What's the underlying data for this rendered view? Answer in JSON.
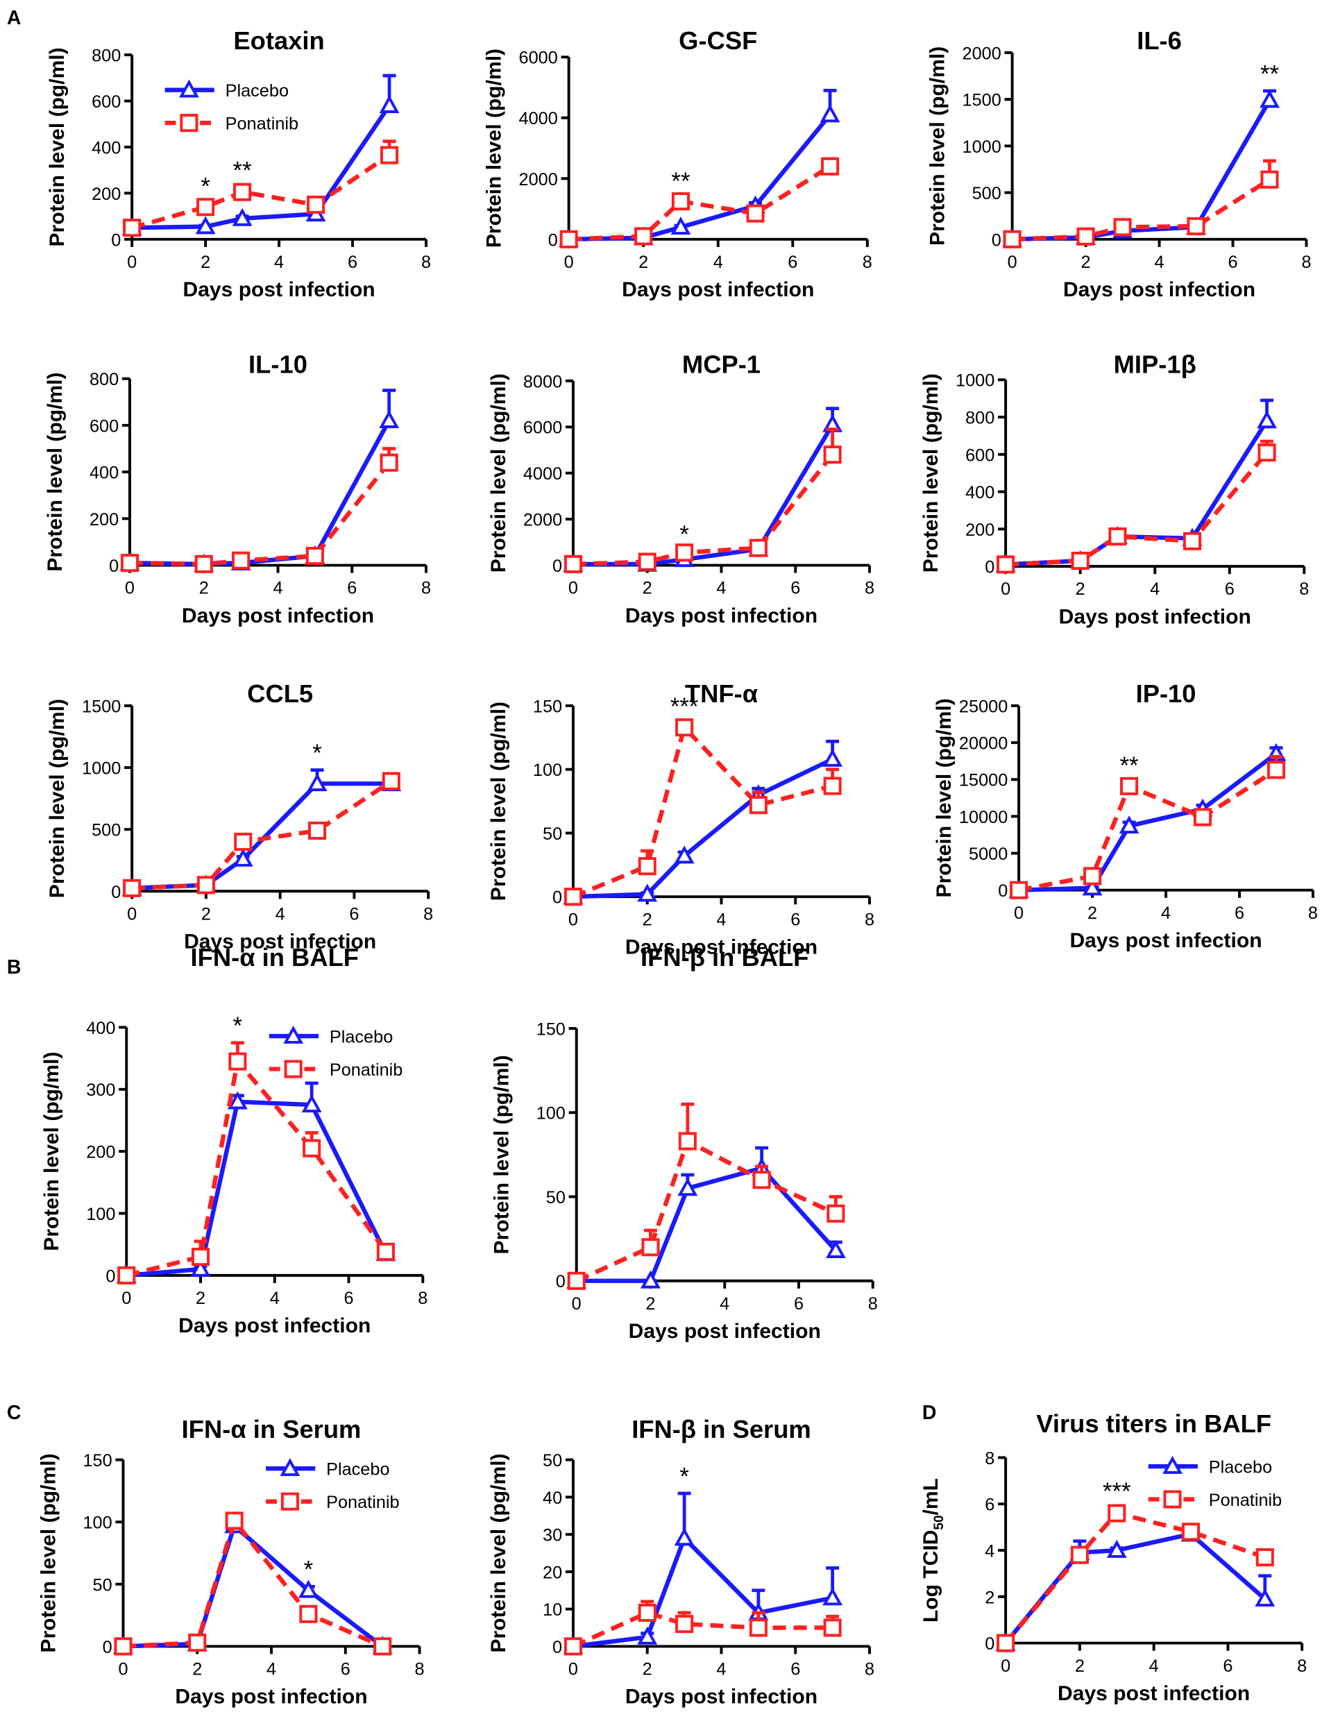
{
  "chart_data": [
    {
      "type": "line",
      "panel": "A",
      "title": "Eotaxin",
      "xlabel": "Days post infection",
      "ylabel": "Protein level (pg/ml)",
      "x": [
        0,
        2,
        3,
        5,
        7
      ],
      "xlim": [
        0,
        8
      ],
      "xticks": [
        0,
        2,
        4,
        6,
        8
      ],
      "ylim": [
        0,
        800
      ],
      "yticks": [
        0,
        200,
        400,
        600,
        800
      ],
      "legend": "upper left",
      "series": [
        {
          "name": "Placebo",
          "color": "#1a1aff",
          "values": [
            50,
            55,
            90,
            110,
            580
          ],
          "errors": [
            10,
            5,
            10,
            15,
            130
          ]
        },
        {
          "name": "Ponatinib",
          "color": "#ff2020",
          "values": [
            50,
            140,
            205,
            150,
            365
          ],
          "errors": [
            10,
            15,
            20,
            10,
            60
          ]
        }
      ],
      "annotations": [
        {
          "label": "*",
          "x": 2
        },
        {
          "label": "**",
          "x": 3
        }
      ]
    },
    {
      "type": "line",
      "title": "G-CSF",
      "xlabel": "Days post infection",
      "ylabel": "Protein level (pg/ml)",
      "x": [
        0,
        2,
        3,
        5,
        7
      ],
      "xlim": [
        0,
        8
      ],
      "xticks": [
        0,
        2,
        4,
        6,
        8
      ],
      "ylim": [
        0,
        6000
      ],
      "yticks": [
        0,
        2000,
        4000,
        6000
      ],
      "series": [
        {
          "name": "Placebo",
          "color": "#1a1aff",
          "values": [
            0,
            50,
            400,
            1100,
            4100
          ],
          "errors": [
            0,
            20,
            50,
            100,
            800
          ]
        },
        {
          "name": "Ponatinib",
          "color": "#ff2020",
          "values": [
            0,
            100,
            1250,
            850,
            2400
          ],
          "errors": [
            0,
            30,
            100,
            100,
            250
          ]
        }
      ],
      "annotations": [
        {
          "label": "**",
          "x": 3
        }
      ]
    },
    {
      "type": "line",
      "title": "IL-6",
      "xlabel": "Days post infection",
      "ylabel": "Protein level (pg/ml)",
      "x": [
        0,
        2,
        3,
        5,
        7
      ],
      "xlim": [
        0,
        8
      ],
      "xticks": [
        0,
        2,
        4,
        6,
        8
      ],
      "ylim": [
        0,
        2000
      ],
      "yticks": [
        0,
        500,
        1000,
        1500,
        2000
      ],
      "series": [
        {
          "name": "Placebo",
          "color": "#1a1aff",
          "values": [
            0,
            20,
            90,
            130,
            1490
          ],
          "errors": [
            0,
            5,
            10,
            20,
            100
          ]
        },
        {
          "name": "Ponatinib",
          "color": "#ff2020",
          "values": [
            0,
            30,
            130,
            140,
            640
          ],
          "errors": [
            0,
            5,
            10,
            20,
            200
          ]
        }
      ],
      "annotations": [
        {
          "label": "**",
          "x": 7
        }
      ]
    },
    {
      "type": "line",
      "title": "IL-10",
      "xlabel": "Days post infection",
      "ylabel": "Protein level (pg/ml)",
      "x": [
        0,
        2,
        3,
        5,
        7
      ],
      "xlim": [
        0,
        8
      ],
      "xticks": [
        0,
        2,
        4,
        6,
        8
      ],
      "ylim": [
        0,
        800
      ],
      "yticks": [
        0,
        200,
        400,
        600,
        800
      ],
      "series": [
        {
          "name": "Placebo",
          "color": "#1a1aff",
          "values": [
            10,
            5,
            10,
            40,
            620
          ],
          "errors": [
            2,
            2,
            3,
            5,
            130
          ]
        },
        {
          "name": "Ponatinib",
          "color": "#ff2020",
          "values": [
            10,
            5,
            20,
            40,
            440
          ],
          "errors": [
            2,
            2,
            3,
            5,
            60
          ]
        }
      ],
      "annotations": []
    },
    {
      "type": "line",
      "title": "MCP-1",
      "xlabel": "Days post infection",
      "ylabel": "Protein level (pg/ml)",
      "x": [
        0,
        2,
        3,
        5,
        7
      ],
      "xlim": [
        0,
        8
      ],
      "xticks": [
        0,
        2,
        4,
        6,
        8
      ],
      "ylim": [
        0,
        8000
      ],
      "yticks": [
        0,
        2000,
        4000,
        6000,
        8000
      ],
      "series": [
        {
          "name": "Placebo",
          "color": "#1a1aff",
          "values": [
            50,
            50,
            250,
            700,
            6100
          ],
          "errors": [
            10,
            10,
            30,
            100,
            700
          ]
        },
        {
          "name": "Ponatinib",
          "color": "#ff2020",
          "values": [
            50,
            150,
            550,
            750,
            4800
          ],
          "errors": [
            10,
            20,
            50,
            100,
            1100
          ]
        }
      ],
      "annotations": [
        {
          "label": "*",
          "x": 3
        }
      ]
    },
    {
      "type": "line",
      "title": "MIP-1β",
      "xlabel": "Days post infection",
      "ylabel": "Protein level (pg/ml)",
      "x": [
        0,
        2,
        3,
        5,
        7
      ],
      "xlim": [
        0,
        8
      ],
      "xticks": [
        0,
        2,
        4,
        6,
        8
      ],
      "ylim": [
        0,
        1000
      ],
      "yticks": [
        0,
        200,
        400,
        600,
        800,
        1000
      ],
      "series": [
        {
          "name": "Placebo",
          "color": "#1a1aff",
          "values": [
            10,
            30,
            160,
            150,
            780
          ],
          "errors": [
            2,
            5,
            10,
            10,
            110
          ]
        },
        {
          "name": "Ponatinib",
          "color": "#ff2020",
          "values": [
            10,
            30,
            160,
            135,
            610
          ],
          "errors": [
            2,
            5,
            10,
            10,
            60
          ]
        }
      ],
      "annotations": []
    },
    {
      "type": "line",
      "title": "CCL5",
      "xlabel": "Days post infection",
      "ylabel": "Protein level (pg/ml)",
      "x": [
        0,
        2,
        3,
        5,
        7
      ],
      "xlim": [
        0,
        8
      ],
      "xticks": [
        0,
        2,
        4,
        6,
        8
      ],
      "ylim": [
        0,
        1500
      ],
      "yticks": [
        0,
        500,
        1000,
        1500
      ],
      "series": [
        {
          "name": "Placebo",
          "color": "#1a1aff",
          "values": [
            25,
            50,
            260,
            870,
            870
          ],
          "errors": [
            5,
            10,
            20,
            110,
            60
          ]
        },
        {
          "name": "Ponatinib",
          "color": "#ff2020",
          "values": [
            25,
            50,
            400,
            490,
            890
          ],
          "errors": [
            5,
            10,
            60,
            50,
            60
          ]
        }
      ],
      "annotations": [
        {
          "label": "*",
          "x": 5
        }
      ]
    },
    {
      "type": "line",
      "title": "TNF-α",
      "xlabel": "Days post infection",
      "ylabel": "Protein level (pg/ml)",
      "x": [
        0,
        2,
        3,
        5,
        7
      ],
      "xlim": [
        0,
        8
      ],
      "xticks": [
        0,
        2,
        4,
        6,
        8
      ],
      "ylim": [
        0,
        150
      ],
      "yticks": [
        0,
        50,
        100,
        150
      ],
      "series": [
        {
          "name": "Placebo",
          "color": "#1a1aff",
          "values": [
            0,
            2,
            32,
            80,
            108
          ],
          "errors": [
            0,
            1,
            3,
            5,
            14
          ]
        },
        {
          "name": "Ponatinib",
          "color": "#ff2020",
          "values": [
            0,
            24,
            133,
            72,
            87
          ],
          "errors": [
            0,
            12,
            3,
            10,
            13
          ]
        }
      ],
      "annotations": [
        {
          "label": "***",
          "x": 3
        }
      ]
    },
    {
      "type": "line",
      "title": "IP-10",
      "xlabel": "Days post infection",
      "ylabel": "Protein level (pg/ml)",
      "x": [
        0,
        2,
        3,
        5,
        7
      ],
      "xlim": [
        0,
        8
      ],
      "xticks": [
        0,
        2,
        4,
        6,
        8
      ],
      "ylim": [
        0,
        25000
      ],
      "yticks": [
        0,
        5000,
        10000,
        15000,
        20000,
        25000
      ],
      "series": [
        {
          "name": "Placebo",
          "color": "#1a1aff",
          "values": [
            0,
            300,
            8700,
            11000,
            18500
          ],
          "errors": [
            0,
            100,
            500,
            500,
            800
          ]
        },
        {
          "name": "Ponatinib",
          "color": "#ff2020",
          "values": [
            0,
            1900,
            14100,
            9900,
            16300
          ],
          "errors": [
            0,
            300,
            500,
            500,
            1800
          ]
        }
      ],
      "annotations": [
        {
          "label": "**",
          "x": 3
        }
      ]
    },
    {
      "type": "line",
      "panel": "B",
      "title": "IFN-α in BALF",
      "xlabel": "Days post infection",
      "ylabel": "Protein level (pg/ml)",
      "x": [
        0,
        2,
        3,
        5,
        7
      ],
      "xlim": [
        0,
        8
      ],
      "xticks": [
        0,
        2,
        4,
        6,
        8
      ],
      "ylim": [
        0,
        400
      ],
      "yticks": [
        0,
        100,
        200,
        300,
        400
      ],
      "legend": "upper right",
      "series": [
        {
          "name": "Placebo",
          "color": "#1a1aff",
          "values": [
            0,
            10,
            280,
            275,
            35
          ],
          "errors": [
            0,
            5,
            10,
            35,
            5
          ]
        },
        {
          "name": "Ponatinib",
          "color": "#ff2020",
          "values": [
            0,
            30,
            345,
            205,
            38
          ],
          "errors": [
            0,
            25,
            30,
            25,
            5
          ]
        }
      ],
      "annotations": [
        {
          "label": "*",
          "x": 3
        }
      ]
    },
    {
      "type": "line",
      "title": "IFN-β in BALF",
      "xlabel": "Days post infection",
      "ylabel": "Protein level (pg/ml)",
      "x": [
        0,
        2,
        3,
        5,
        7
      ],
      "xlim": [
        0,
        8
      ],
      "xticks": [
        0,
        2,
        4,
        6,
        8
      ],
      "ylim": [
        0,
        150
      ],
      "yticks": [
        0,
        50,
        100,
        150
      ],
      "series": [
        {
          "name": "Placebo",
          "color": "#1a1aff",
          "values": [
            0,
            0,
            55,
            67,
            18
          ],
          "errors": [
            0,
            0,
            8,
            12,
            5
          ]
        },
        {
          "name": "Ponatinib",
          "color": "#ff2020",
          "values": [
            0,
            20,
            83,
            60,
            40
          ],
          "errors": [
            0,
            10,
            22,
            8,
            10
          ]
        }
      ],
      "annotations": []
    },
    {
      "type": "line",
      "panel": "C",
      "title": "IFN-α in Serum",
      "xlabel": "Days post infection",
      "ylabel": "Protein level (pg/ml)",
      "x": [
        0,
        2,
        3,
        5,
        7
      ],
      "xlim": [
        0,
        8
      ],
      "xticks": [
        0,
        2,
        4,
        6,
        8
      ],
      "ylim": [
        0,
        150
      ],
      "yticks": [
        0,
        50,
        100,
        150
      ],
      "legend": "upper right",
      "series": [
        {
          "name": "Placebo",
          "color": "#1a1aff",
          "values": [
            0,
            2,
            97,
            45,
            0
          ],
          "errors": [
            0,
            1,
            5,
            3,
            0
          ]
        },
        {
          "name": "Ponatinib",
          "color": "#ff2020",
          "values": [
            0,
            3,
            101,
            26,
            0
          ],
          "errors": [
            0,
            2,
            5,
            5,
            0
          ]
        }
      ],
      "annotations": [
        {
          "label": "*",
          "x": 5
        }
      ]
    },
    {
      "type": "line",
      "title": "IFN-β in Serum",
      "xlabel": "Days post infection",
      "ylabel": "Protein level (pg/ml)",
      "x": [
        0,
        2,
        3,
        5,
        7
      ],
      "xlim": [
        0,
        8
      ],
      "xticks": [
        0,
        2,
        4,
        6,
        8
      ],
      "ylim": [
        0,
        50
      ],
      "yticks": [
        0,
        10,
        20,
        30,
        40,
        50
      ],
      "series": [
        {
          "name": "Placebo",
          "color": "#1a1aff",
          "values": [
            0,
            2.5,
            29,
            9,
            13
          ],
          "errors": [
            0,
            1,
            12,
            6,
            8
          ]
        },
        {
          "name": "Ponatinib",
          "color": "#ff2020",
          "values": [
            0,
            9,
            6,
            5,
            5
          ],
          "errors": [
            0,
            3,
            3,
            4,
            3
          ]
        }
      ],
      "annotations": [
        {
          "label": "*",
          "x": 3
        }
      ]
    },
    {
      "type": "line",
      "panel": "D",
      "title": "Virus titers in BALF",
      "xlabel": "Days post infection",
      "ylabel": [
        "Log TCID",
        "50",
        "/mL"
      ],
      "x": [
        0,
        2,
        3,
        5,
        7
      ],
      "xlim": [
        0,
        8
      ],
      "xticks": [
        0,
        2,
        4,
        6,
        8
      ],
      "ylim": [
        0,
        8
      ],
      "yticks": [
        0,
        2,
        4,
        6,
        8
      ],
      "legend": "upper right",
      "series": [
        {
          "name": "Placebo",
          "color": "#1a1aff",
          "values": [
            0,
            3.9,
            4.0,
            4.7,
            1.9
          ],
          "errors": [
            0,
            0.5,
            0.1,
            0.2,
            1.0
          ]
        },
        {
          "name": "Ponatinib",
          "color": "#ff2020",
          "values": [
            0,
            3.8,
            5.6,
            4.8,
            3.7
          ],
          "errors": [
            0,
            0.3,
            0.2,
            0.1,
            0.3
          ]
        }
      ],
      "annotations": [
        {
          "label": "***",
          "x": 3
        }
      ]
    }
  ]
}
